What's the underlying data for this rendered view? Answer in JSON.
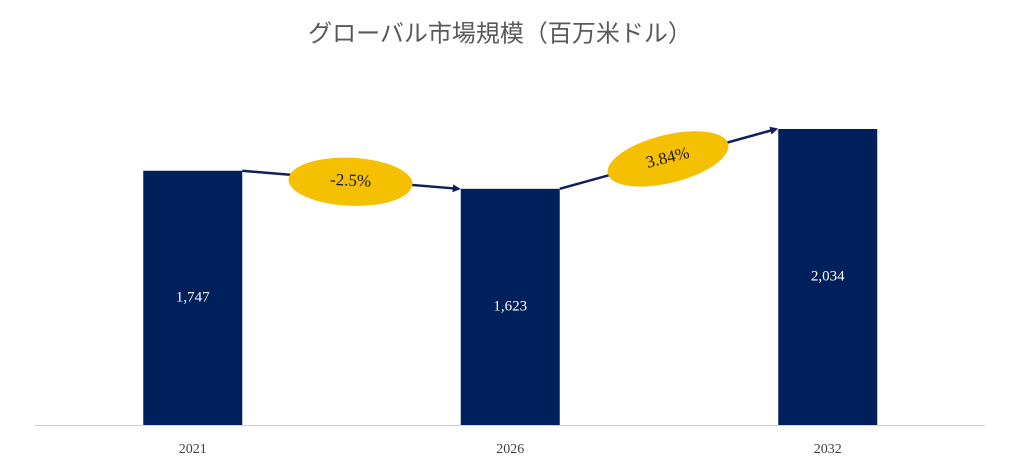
{
  "chart_data": {
    "type": "bar",
    "title": "グローバル市場規模（百万米ドル）",
    "categories": [
      "2021",
      "2026",
      "2032"
    ],
    "values": [
      1747,
      1623,
      2034
    ],
    "value_labels": [
      "1,747",
      "1,623",
      "2,034"
    ],
    "color": "#00205b",
    "annotations": [
      {
        "text": "-2.5%"
      },
      {
        "text": "3.84%"
      }
    ]
  }
}
